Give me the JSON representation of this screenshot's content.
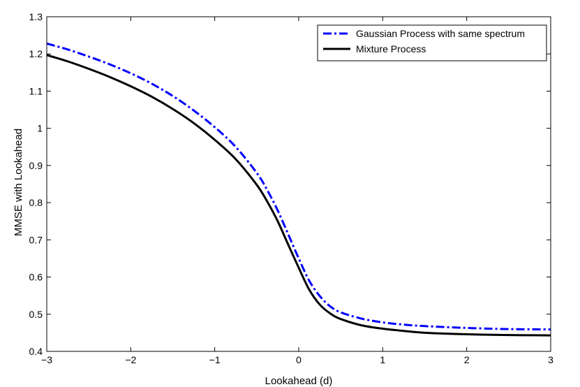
{
  "chart_data": {
    "type": "line",
    "xlabel": "Lookahead (d)",
    "ylabel": "MMSE with Lookahead",
    "xlim": [
      -3,
      3
    ],
    "ylim": [
      0.4,
      1.3
    ],
    "xticks": [
      -3,
      -2,
      -1,
      0,
      1,
      2,
      3
    ],
    "xtick_labels": [
      "−3",
      "−2",
      "−1",
      "0",
      "1",
      "2",
      "3"
    ],
    "yticks": [
      0.4,
      0.5,
      0.6,
      0.7,
      0.8,
      0.9,
      1.0,
      1.1,
      1.2,
      1.3
    ],
    "ytick_labels": [
      "0.4",
      "0.5",
      "0.6",
      "0.7",
      "0.8",
      "0.9",
      "1",
      "1.1",
      "1.2",
      "1.3"
    ],
    "grid": false,
    "legend_position": "top-right",
    "series": [
      {
        "name": "Gaussian Process with same spectrum",
        "color": "#0000ff",
        "style": "dash-dot",
        "x": [
          -3,
          -2.75,
          -2.5,
          -2.25,
          -2,
          -1.75,
          -1.5,
          -1.25,
          -1,
          -0.75,
          -0.5,
          -0.375,
          -0.25,
          -0.125,
          0,
          0.125,
          0.25,
          0.375,
          0.5,
          0.75,
          1,
          1.25,
          1.5,
          2,
          2.5,
          3
        ],
        "values": [
          1.228,
          1.212,
          1.193,
          1.172,
          1.148,
          1.12,
          1.087,
          1.048,
          1.003,
          0.95,
          0.88,
          0.834,
          0.779,
          0.715,
          0.65,
          0.59,
          0.549,
          0.521,
          0.505,
          0.488,
          0.478,
          0.472,
          0.468,
          0.463,
          0.46,
          0.459
        ]
      },
      {
        "name": "Mixture Process",
        "color": "#000000",
        "style": "solid",
        "x": [
          -3,
          -2.75,
          -2.5,
          -2.25,
          -2,
          -1.75,
          -1.5,
          -1.25,
          -1,
          -0.75,
          -0.5,
          -0.375,
          -0.25,
          -0.125,
          0,
          0.125,
          0.25,
          0.375,
          0.5,
          0.75,
          1,
          1.25,
          1.5,
          2,
          2.5,
          3
        ],
        "values": [
          1.197,
          1.18,
          1.16,
          1.138,
          1.113,
          1.085,
          1.052,
          1.014,
          0.969,
          0.917,
          0.848,
          0.803,
          0.75,
          0.687,
          0.625,
          0.566,
          0.526,
          0.502,
          0.487,
          0.47,
          0.461,
          0.455,
          0.45,
          0.446,
          0.444,
          0.443
        ]
      }
    ]
  }
}
